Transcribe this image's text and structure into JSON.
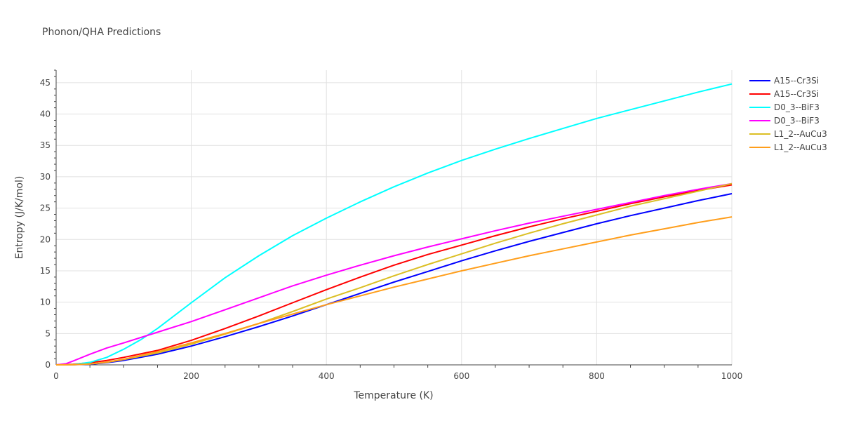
{
  "chart_data": {
    "type": "line",
    "title": "Phonon/QHA Predictions",
    "xlabel": "Temperature (K)",
    "ylabel": "Entropy (J/K/mol)",
    "xlim": [
      0,
      1000
    ],
    "ylim": [
      0,
      47
    ],
    "xticks": [
      0,
      200,
      400,
      600,
      800,
      1000
    ],
    "yticks": [
      0,
      5,
      10,
      15,
      20,
      25,
      30,
      35,
      40,
      45
    ],
    "grid": true,
    "legend_position": "top-right",
    "series": [
      {
        "name": "A15--Cr3Si",
        "color": "#0000ff",
        "x": [
          0,
          25,
          50,
          75,
          100,
          150,
          200,
          250,
          300,
          350,
          400,
          450,
          500,
          550,
          600,
          650,
          700,
          750,
          800,
          850,
          900,
          950,
          1000
        ],
        "y": [
          0,
          0.02,
          0.1,
          0.35,
          0.7,
          1.7,
          3.0,
          4.5,
          6.1,
          7.8,
          9.6,
          11.4,
          13.2,
          14.9,
          16.6,
          18.2,
          19.7,
          21.1,
          22.5,
          23.8,
          25.0,
          26.2,
          27.3
        ]
      },
      {
        "name": "A15--Cr3Si",
        "color": "#ff0000",
        "x": [
          0,
          25,
          50,
          75,
          100,
          150,
          200,
          250,
          300,
          350,
          400,
          450,
          500,
          550,
          600,
          650,
          700,
          750,
          800,
          850,
          900,
          950,
          1000
        ],
        "y": [
          0,
          0.1,
          0.35,
          0.7,
          1.2,
          2.3,
          3.9,
          5.8,
          7.8,
          9.9,
          12.0,
          14.0,
          15.9,
          17.6,
          19.1,
          20.6,
          22.0,
          23.3,
          24.5,
          25.7,
          26.8,
          27.8,
          28.7
        ]
      },
      {
        "name": "D0_3--BiF3",
        "color": "#00ffff",
        "x": [
          0,
          25,
          50,
          75,
          100,
          125,
          150,
          200,
          250,
          300,
          350,
          400,
          450,
          500,
          550,
          600,
          650,
          700,
          750,
          800,
          850,
          900,
          950,
          1000
        ],
        "y": [
          0,
          0.05,
          0.4,
          1.2,
          2.5,
          4.0,
          5.8,
          9.9,
          13.9,
          17.4,
          20.6,
          23.4,
          26.0,
          28.4,
          30.6,
          32.6,
          34.4,
          36.1,
          37.7,
          39.3,
          40.7,
          42.1,
          43.5,
          44.8
        ]
      },
      {
        "name": "D0_3--BiF3",
        "color": "#ff00ff",
        "x": [
          0,
          15,
          25,
          50,
          75,
          100,
          150,
          200,
          250,
          300,
          350,
          400,
          450,
          500,
          550,
          600,
          650,
          700,
          750,
          800,
          850,
          900,
          950,
          1000
        ],
        "y": [
          0,
          0.2,
          0.6,
          1.7,
          2.7,
          3.5,
          5.2,
          6.9,
          8.8,
          10.7,
          12.6,
          14.3,
          15.9,
          17.4,
          18.8,
          20.1,
          21.4,
          22.6,
          23.7,
          24.8,
          25.9,
          27.0,
          28.0,
          28.9
        ]
      },
      {
        "name": "L1_2--AuCu3",
        "color": "#dbbf24",
        "x": [
          0,
          25,
          50,
          75,
          100,
          150,
          200,
          250,
          300,
          350,
          400,
          450,
          500,
          550,
          600,
          650,
          700,
          750,
          800,
          850,
          900,
          950,
          1000
        ],
        "y": [
          0,
          0.03,
          0.15,
          0.4,
          0.85,
          1.9,
          3.3,
          4.9,
          6.6,
          8.5,
          10.5,
          12.3,
          14.2,
          16.0,
          17.7,
          19.4,
          21.0,
          22.5,
          23.9,
          25.3,
          26.5,
          27.7,
          28.9
        ]
      },
      {
        "name": "L1_2--AuCu3",
        "color": "#ff9e1b",
        "x": [
          0,
          25,
          50,
          75,
          100,
          150,
          200,
          250,
          300,
          350,
          400,
          450,
          500,
          550,
          600,
          650,
          700,
          750,
          800,
          850,
          900,
          950,
          1000
        ],
        "y": [
          0,
          0.03,
          0.15,
          0.45,
          0.9,
          2.1,
          3.5,
          5.0,
          6.6,
          8.1,
          9.6,
          11.0,
          12.4,
          13.7,
          15.0,
          16.2,
          17.4,
          18.5,
          19.6,
          20.7,
          21.7,
          22.7,
          23.6
        ]
      }
    ]
  }
}
